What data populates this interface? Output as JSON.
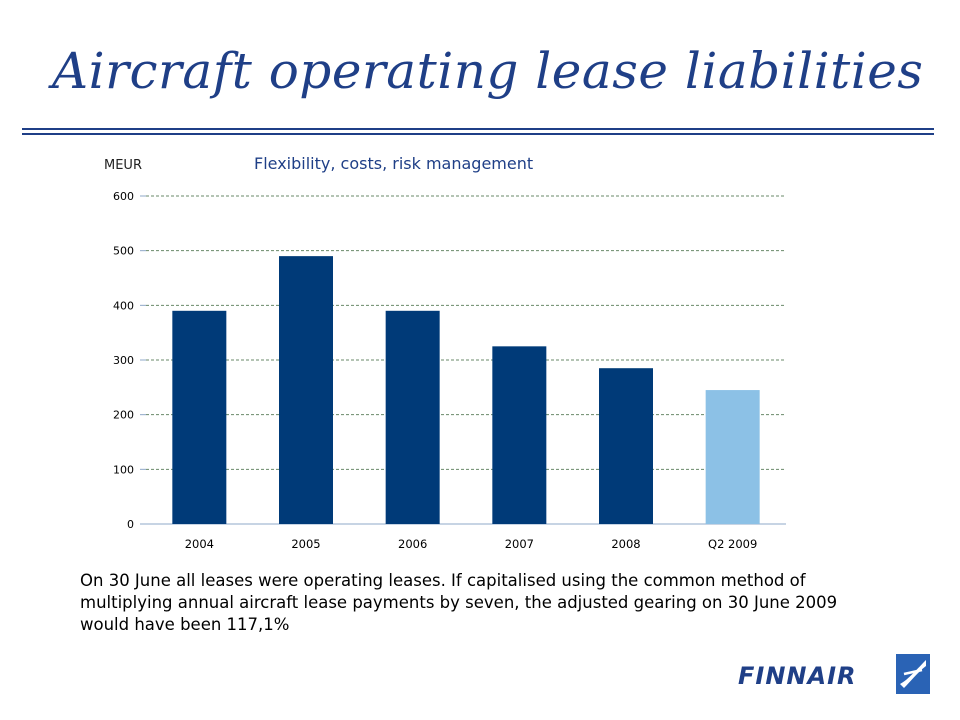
{
  "slide": {
    "title": "Aircraft operating lease liabilities",
    "body": "On 30 June all leases were operating leases. If capitalised using the common method of multiplying annual aircraft lease payments by seven, the adjusted gearing on 30 June 2009 would have been 117,1%",
    "logo_text": "FINNAIR"
  },
  "colors": {
    "title": "#1f3f87",
    "bar_primary": "#003a78",
    "bar_highlight": "#8cc1e6",
    "grid": "#6a8a6a"
  },
  "chart_data": {
    "type": "bar",
    "title": "Flexibility, costs, risk management",
    "ylabel": "MEUR",
    "xlabel": "",
    "categories": [
      "2004",
      "2005",
      "2006",
      "2007",
      "2008",
      "Q2 2009"
    ],
    "values": [
      390,
      490,
      390,
      325,
      285,
      245
    ],
    "highlight_index": 5,
    "ylim": [
      0,
      600
    ],
    "yticks": [
      0,
      100,
      200,
      300,
      400,
      500,
      600
    ],
    "grid": "horizontal-dashed",
    "legend": "none"
  }
}
